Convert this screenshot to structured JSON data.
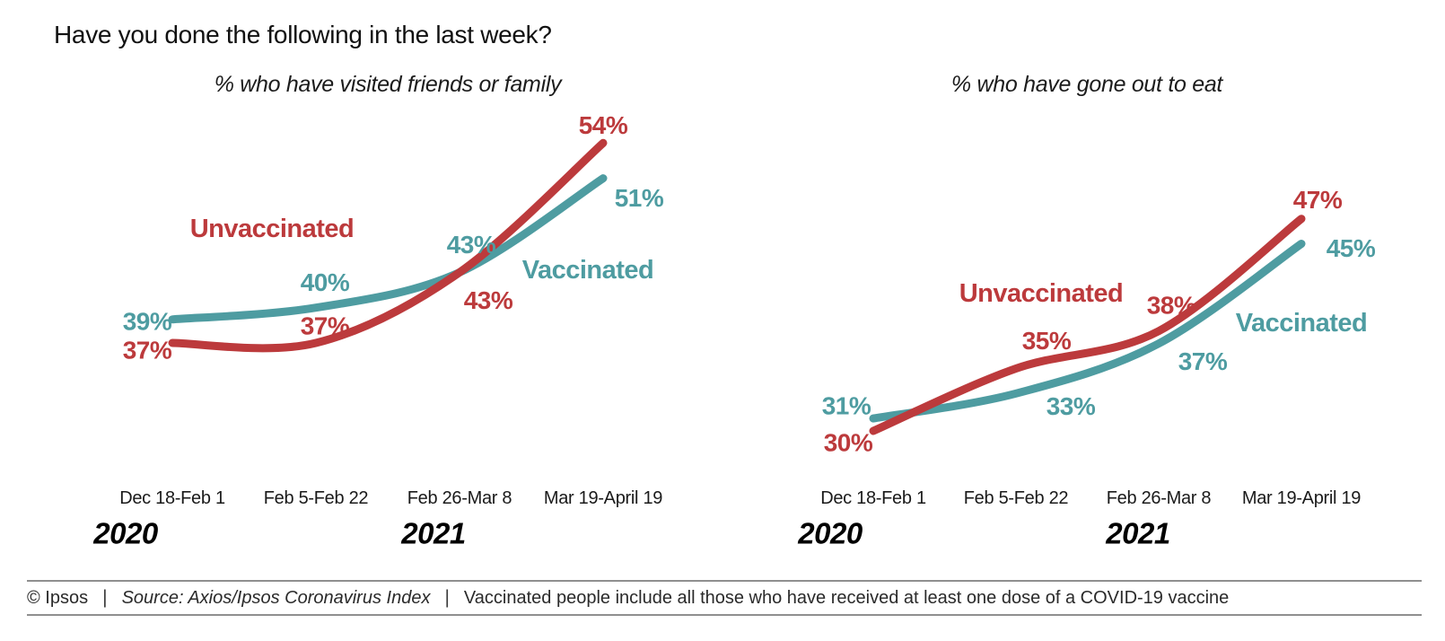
{
  "page": {
    "title": "Have you done the following in the last week?"
  },
  "colors": {
    "unvaccinated": "#bc3a3c",
    "vaccinated": "#4e9ca1",
    "axis_text": "#1a1a1a",
    "year_text": "#000000",
    "rule": "#8f8f8f"
  },
  "footer": {
    "copyright": "© Ipsos",
    "separator": "|",
    "source": "Source: Axios/Ipsos Coronavirus Index",
    "note": "Vaccinated people include all those who have received at least one dose of a COVID-19 vaccine"
  },
  "chart_data": [
    {
      "type": "line",
      "title": "% who have visited friends or family",
      "categories": [
        "Dec 18-Feb 1",
        "Feb 5-Feb 22",
        "Feb 26-Mar 8",
        "Mar 19-April 19"
      ],
      "year_labels": [
        "2020",
        "2021"
      ],
      "value_suffix": "%",
      "ylim": [
        25,
        60
      ],
      "grid": false,
      "legend": "inline-labels",
      "series": [
        {
          "name": "Vaccinated",
          "color_key": "vaccinated",
          "values": [
            39,
            40,
            43,
            51
          ]
        },
        {
          "name": "Unvaccinated",
          "color_key": "unvaccinated",
          "values": [
            37,
            37,
            43,
            54
          ]
        }
      ]
    },
    {
      "type": "line",
      "title": "% who have gone out to eat",
      "categories": [
        "Dec 18-Feb 1",
        "Feb 5-Feb 22",
        "Feb 26-Mar 8",
        "Mar 19-April 19"
      ],
      "year_labels": [
        "2020",
        "2021"
      ],
      "value_suffix": "%",
      "ylim": [
        25,
        55
      ],
      "grid": false,
      "legend": "inline-labels",
      "series": [
        {
          "name": "Vaccinated",
          "color_key": "vaccinated",
          "values": [
            31,
            33,
            37,
            45
          ]
        },
        {
          "name": "Unvaccinated",
          "color_key": "unvaccinated",
          "values": [
            30,
            35,
            38,
            47
          ]
        }
      ]
    }
  ]
}
